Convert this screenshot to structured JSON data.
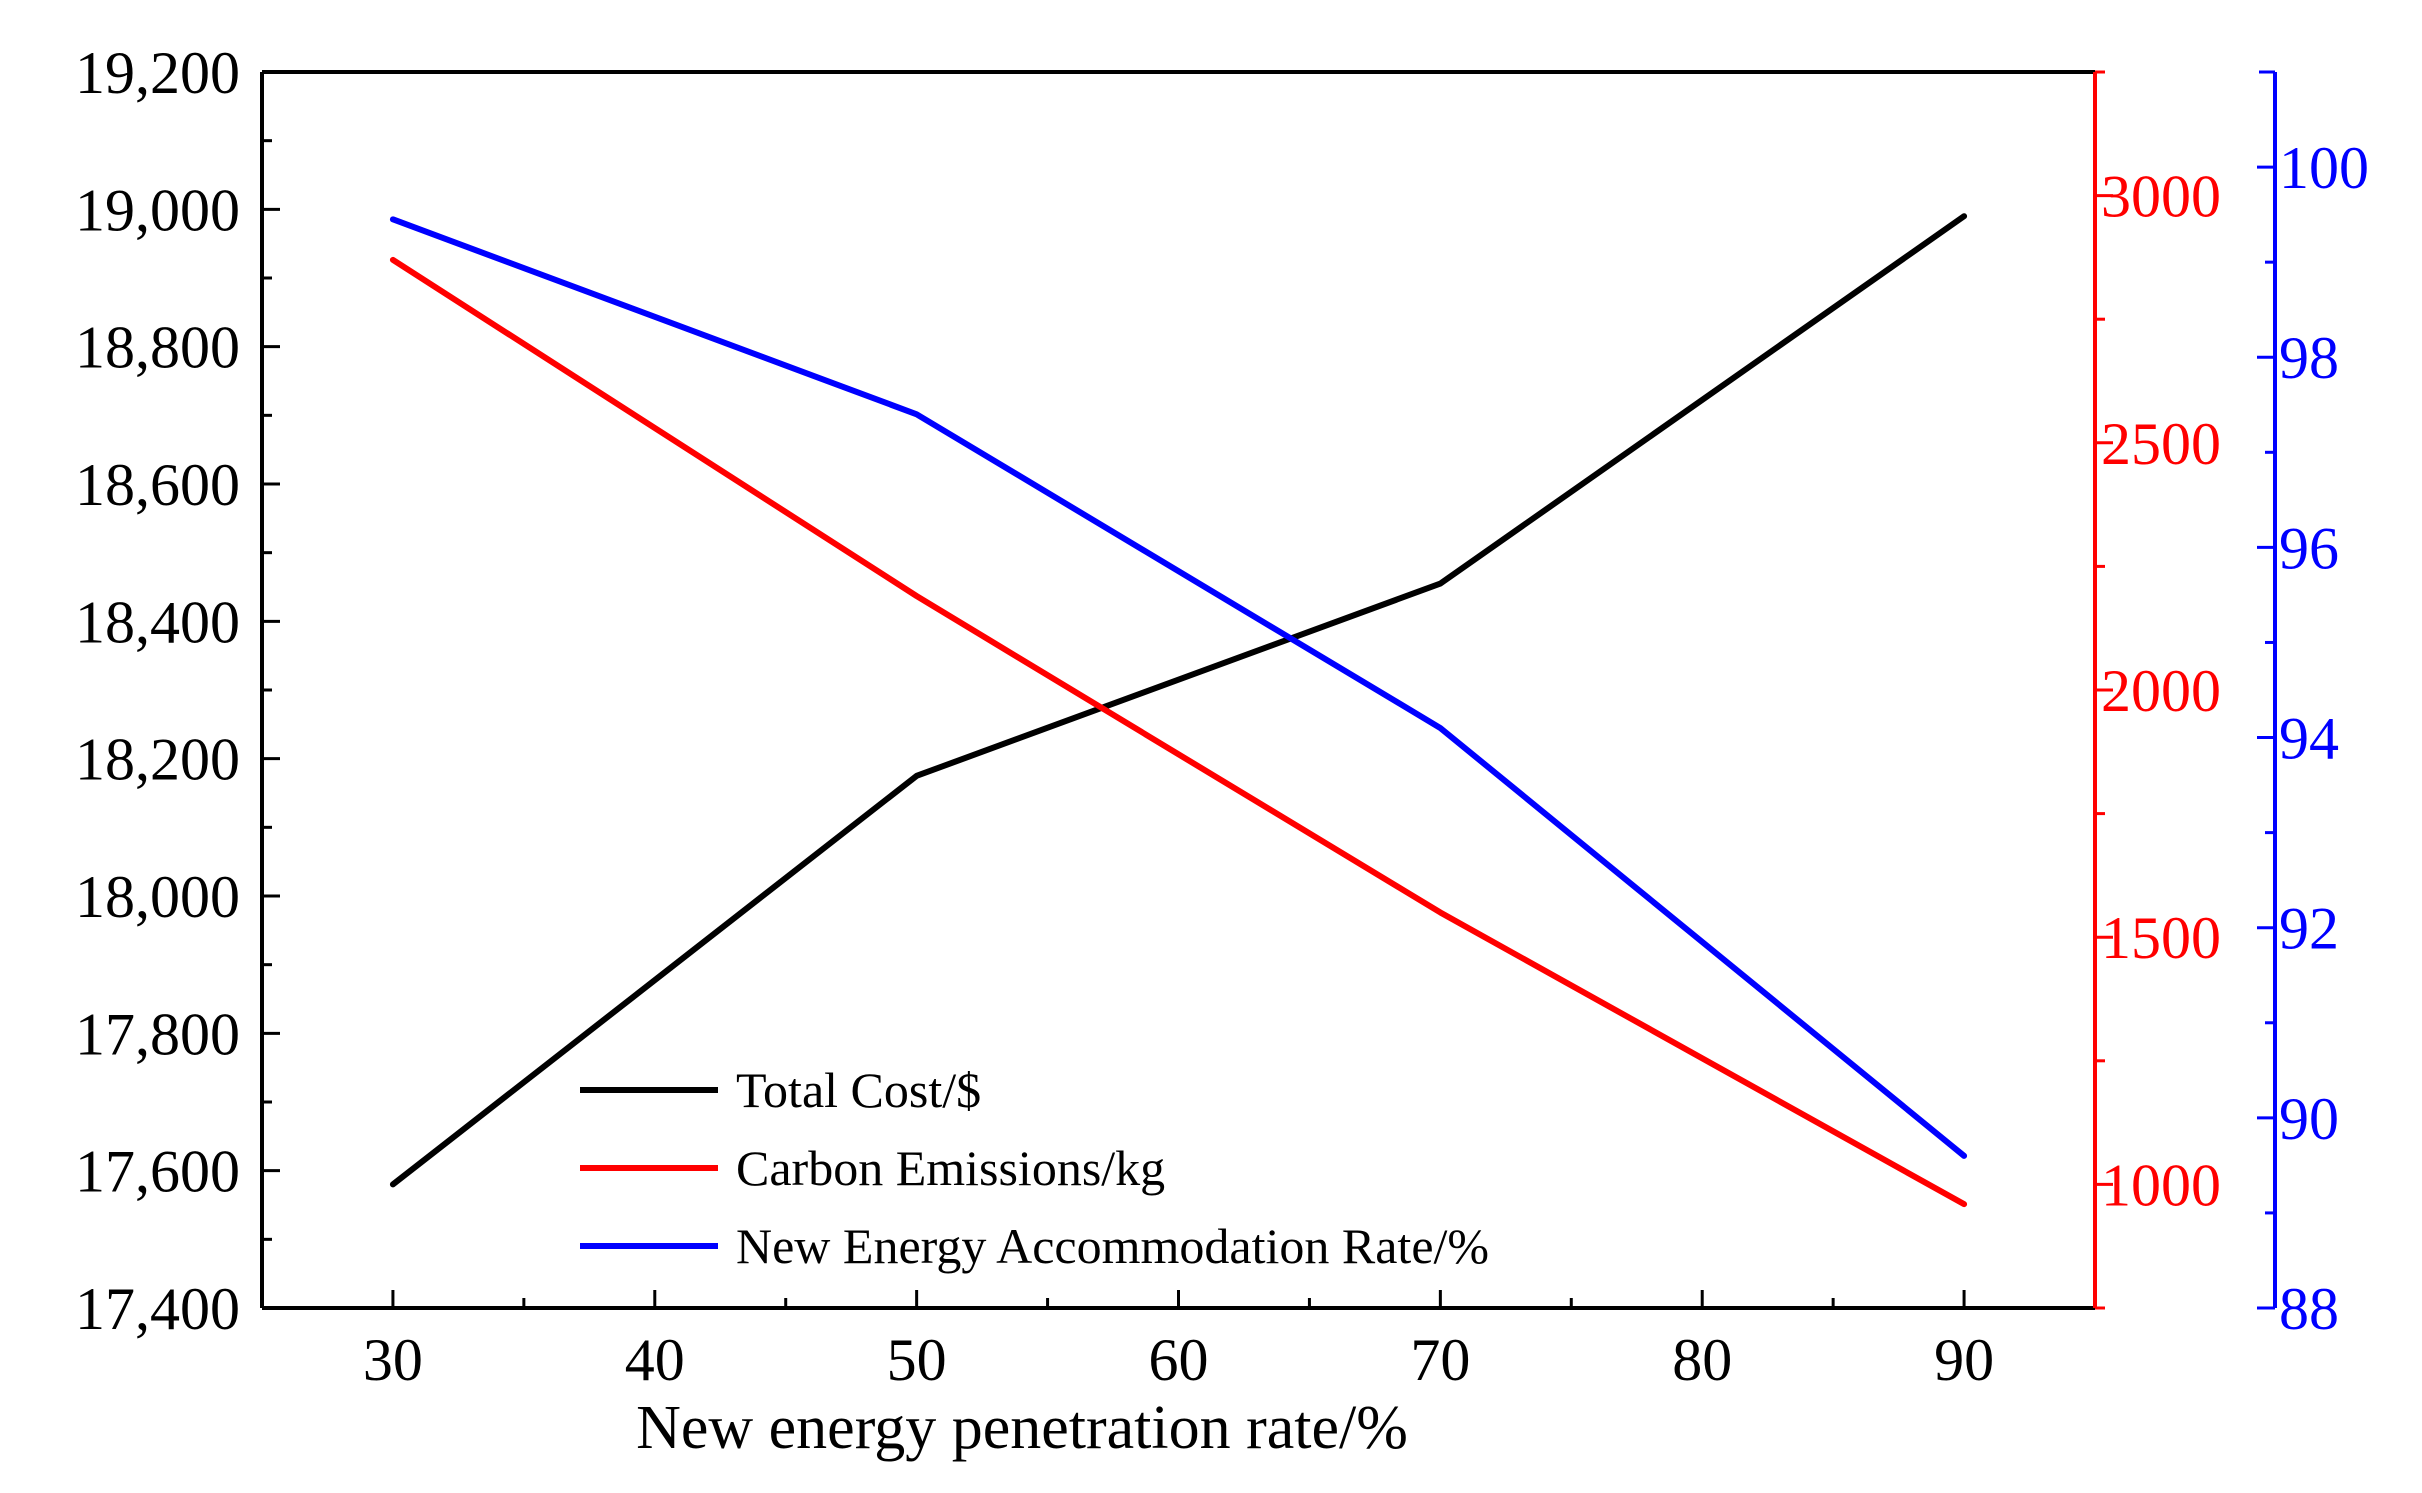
{
  "chart_data": {
    "type": "line",
    "title": "",
    "xlabel": "New energy penetration rate/%",
    "x": [
      30,
      50,
      70,
      90
    ],
    "xlim": [
      25,
      95
    ],
    "xticks": [
      30,
      40,
      50,
      60,
      70,
      80,
      90
    ],
    "xtick_labels": [
      "30",
      "40",
      "50",
      "60",
      "70",
      "80",
      "90"
    ],
    "axes": {
      "left": {
        "color": "#000000",
        "ylim": [
          17400,
          19200
        ],
        "ticks": [
          17400,
          17600,
          17800,
          18000,
          18200,
          18400,
          18600,
          18800,
          19000,
          19200
        ],
        "tick_labels": [
          "17,400",
          "17,600",
          "17,800",
          "18,000",
          "18,200",
          "18,400",
          "18,600",
          "18,800",
          "19,000",
          "19,200"
        ]
      },
      "right1": {
        "color": "#ff0000",
        "ylim": [
          750,
          3250
        ],
        "ticks": [
          1000,
          1500,
          2000,
          2500,
          3000
        ],
        "tick_labels": [
          "1000",
          "1500",
          "2000",
          "2500",
          "3000"
        ]
      },
      "right2": {
        "color": "#0000ff",
        "ylim": [
          88,
          101
        ],
        "ticks": [
          88,
          90,
          92,
          94,
          96,
          98,
          100
        ],
        "tick_labels": [
          "88",
          "90",
          "92",
          "94",
          "96",
          "98",
          "100"
        ]
      }
    },
    "series": [
      {
        "name": "Total Cost/$",
        "axis": "left",
        "color": "#000000",
        "values": [
          17580,
          18175,
          18455,
          18990
        ]
      },
      {
        "name": "Carbon Emissions/kg",
        "axis": "right1",
        "color": "#ff0000",
        "values": [
          2870,
          2190,
          1550,
          960
        ]
      },
      {
        "name": "New Energy Accommodation Rate/%",
        "axis": "right2",
        "color": "#0000ff",
        "values": [
          99.45,
          97.4,
          94.1,
          89.6
        ]
      }
    ],
    "legend": {
      "position": "bottom-left"
    },
    "grid": false
  }
}
